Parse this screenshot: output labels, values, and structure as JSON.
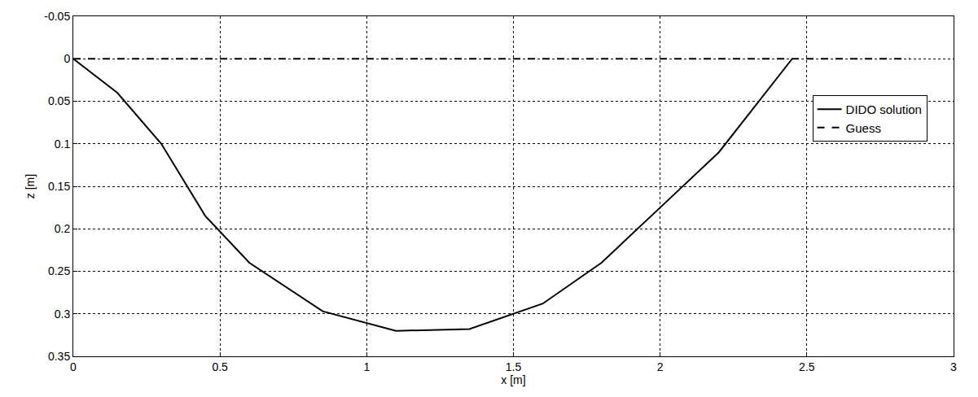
{
  "chart_data": {
    "type": "line",
    "x_label": "x [m]",
    "y_label": "z [m]",
    "xlim": [
      0,
      3
    ],
    "xticks": [
      0,
      0.5,
      1,
      1.5,
      2,
      2.5,
      3
    ],
    "ylim": [
      0.35,
      -0.05
    ],
    "yticks": [
      -0.05,
      0,
      0.05,
      0.1,
      0.15,
      0.2,
      0.25,
      0.3,
      0.35
    ],
    "grid": true,
    "legend": "right",
    "series": [
      {
        "name": "DIDO solution",
        "color": "#000000",
        "line_style": "solid",
        "x": [
          0,
          0.15,
          0.3,
          0.45,
          0.6,
          0.85,
          1.1,
          1.35,
          1.6,
          1.8,
          2.0,
          2.2,
          2.45
        ],
        "values": [
          0,
          0.04,
          0.1,
          0.185,
          0.24,
          0.297,
          0.32,
          0.318,
          0.288,
          0.24,
          0.175,
          0.11,
          0
        ]
      },
      {
        "name": "Guess",
        "color": "#000000",
        "line_style": "dash",
        "x": [
          0,
          2.85
        ],
        "values": [
          0,
          0
        ]
      }
    ]
  }
}
